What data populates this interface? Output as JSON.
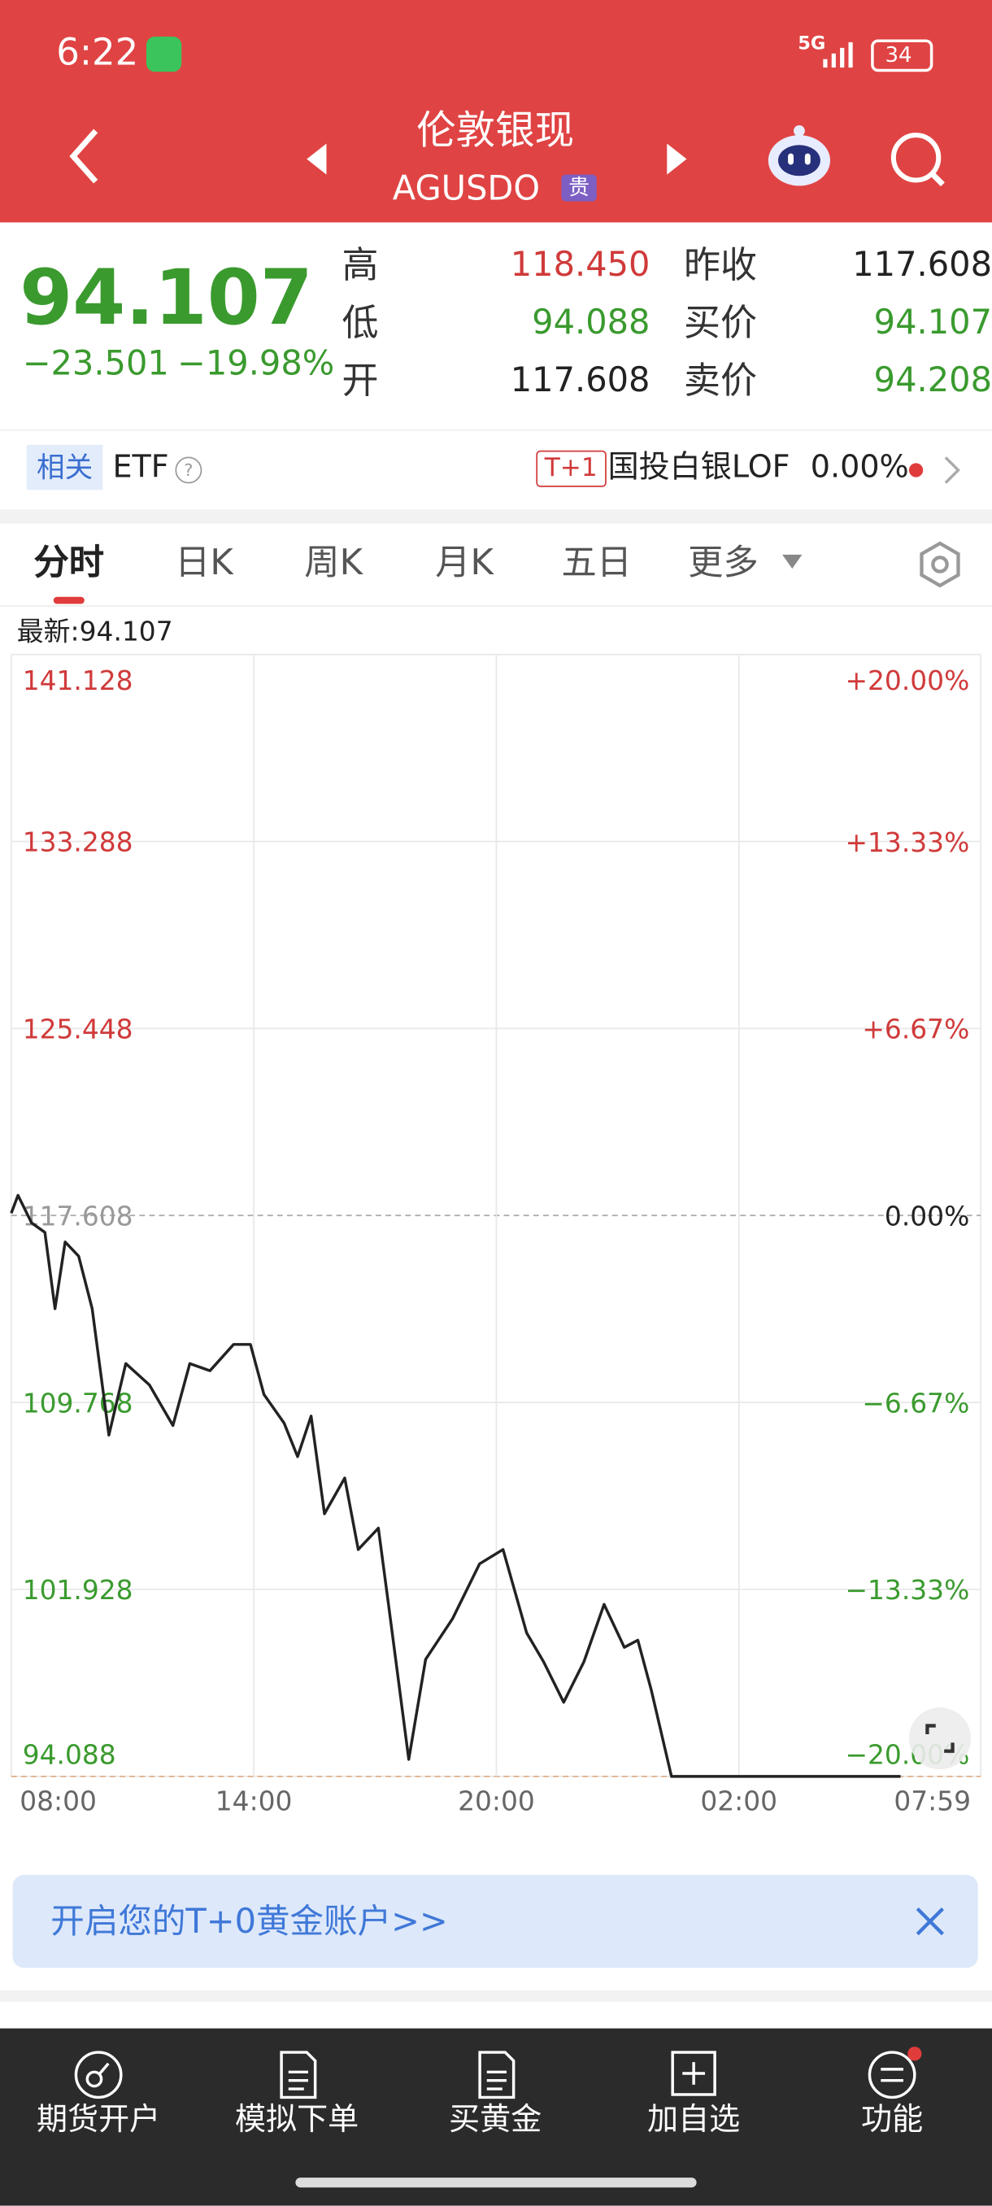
{
  "status_bar": {
    "time": "6:22",
    "network": "5G",
    "battery": "34"
  },
  "header": {
    "title": "伦敦银现",
    "code": "AGUSDO",
    "badge": "贵"
  },
  "quote": {
    "price": "94.107",
    "change": "−23.501",
    "change_pct": "−19.98%",
    "stats": [
      {
        "label": "高",
        "value": "118.450",
        "color": "#d03a3a"
      },
      {
        "label": "昨收",
        "value": "117.608",
        "color": "#222222"
      },
      {
        "label": "低",
        "value": "94.088",
        "color": "#3a9a2e"
      },
      {
        "label": "买价",
        "value": "94.107",
        "color": "#3a9a2e"
      },
      {
        "label": "开",
        "value": "117.608",
        "color": "#222222"
      },
      {
        "label": "卖价",
        "value": "94.208",
        "color": "#3a9a2e"
      }
    ]
  },
  "related": {
    "tag": "相关",
    "etf": "ETF",
    "t_badge": "T+1",
    "fund": "国投白银LOF",
    "fund_change": "0.00%"
  },
  "tabs": [
    "分时",
    "日K",
    "周K",
    "月K",
    "五日",
    "更多"
  ],
  "latest": "最新:94.107",
  "chart_data": {
    "type": "line",
    "color": "#222222",
    "up_color": "#d03a3a",
    "down_color": "#3a9a2e",
    "x": [
      "08:00",
      "08:10",
      "08:30",
      "08:50",
      "09:05",
      "09:20",
      "09:40",
      "10:00",
      "10:25",
      "10:50",
      "11:25",
      "12:00",
      "12:25",
      "12:55",
      "13:30",
      "13:55",
      "14:15",
      "14:45",
      "15:05",
      "15:25",
      "15:45",
      "16:15",
      "16:35",
      "17:05",
      "17:20",
      "17:50",
      "18:15",
      "18:55",
      "19:35",
      "20:10",
      "20:45",
      "21:10",
      "21:40",
      "22:10",
      "22:40",
      "23:10",
      "23:30",
      "23:50",
      "00:20",
      "06:00"
    ],
    "values": [
      117.7,
      118.45,
      117.3,
      116.9,
      113.7,
      116.5,
      115.9,
      113.7,
      108.4,
      111.4,
      110.5,
      108.8,
      111.4,
      111.1,
      112.2,
      112.2,
      110.1,
      108.9,
      107.5,
      109.2,
      105.1,
      106.6,
      103.6,
      104.5,
      101.3,
      94.8,
      99.0,
      100.7,
      103.0,
      103.6,
      100.1,
      98.9,
      97.2,
      98.9,
      101.3,
      99.5,
      99.8,
      97.7,
      94.088,
      94.088
    ],
    "xlim": [
      "08:00",
      "07:59"
    ],
    "xticks": [
      "08:00",
      "14:00",
      "20:00",
      "02:00",
      "07:59"
    ],
    "ylim": [
      94.088,
      141.128
    ],
    "yticks": [
      94.088,
      101.928,
      109.768,
      117.608,
      125.448,
      133.288,
      141.128
    ],
    "y2lim": [
      -20,
      20
    ],
    "y2ticks": [
      {
        "value": -20,
        "label": "−20.00%"
      },
      {
        "value": -13.33,
        "label": "−13.33%"
      },
      {
        "value": -6.67,
        "label": "−6.67%"
      },
      {
        "value": 0,
        "label": "0.00%"
      },
      {
        "value": 6.67,
        "label": "+6.67%"
      },
      {
        "value": 13.33,
        "label": "+13.33%"
      },
      {
        "value": 20,
        "label": "+20.00%"
      }
    ],
    "grid": true
  },
  "banner": "开启您的T+0黄金账户>>",
  "nav": [
    "期货开户",
    "模拟下单",
    "买黄金",
    "加自选",
    "功能"
  ]
}
